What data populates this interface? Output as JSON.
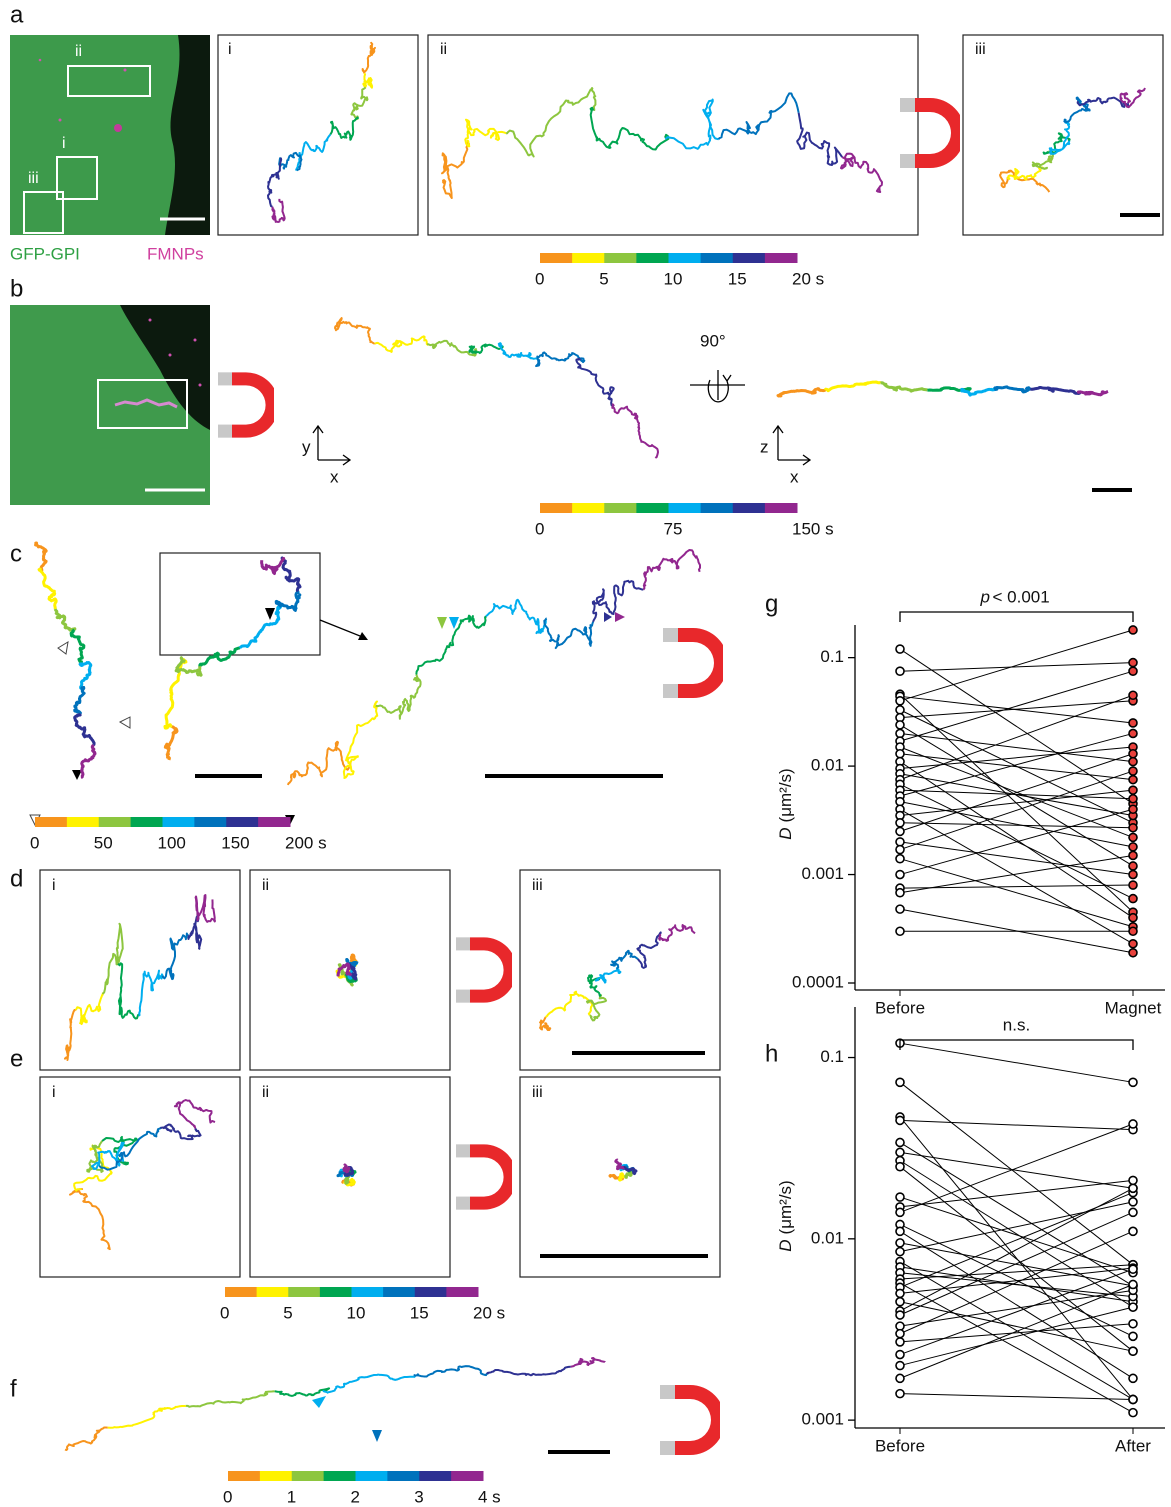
{
  "a": {
    "label": "a",
    "roi_labels": [
      "ii",
      "i",
      "iii"
    ],
    "legend": [
      "GFP-GPI",
      "FMNPs"
    ],
    "subpanels": [
      "i",
      "ii",
      "iii"
    ]
  },
  "b": {
    "label": "b",
    "rotation": "90°",
    "axes_xy": [
      "y",
      "x"
    ],
    "axes_zx": [
      "z",
      "x"
    ]
  },
  "c": {
    "label": "c"
  },
  "d": {
    "label": "d",
    "subpanels": [
      "i",
      "ii",
      "iii"
    ]
  },
  "e": {
    "label": "e",
    "subpanels": [
      "i",
      "ii",
      "iii"
    ]
  },
  "f": {
    "label": "f"
  },
  "colors": [
    "#f7941d",
    "#fff200",
    "#8dc63f",
    "#00a651",
    "#00aeef",
    "#0072bc",
    "#2e3192",
    "#92278f"
  ],
  "colorbars": [
    {
      "lim": [
        0,
        20
      ],
      "ticks": [
        0,
        5,
        10,
        15,
        {
          "value": 20,
          "label": "20 s"
        }
      ]
    },
    {
      "lim": [
        0,
        150
      ],
      "ticks": [
        0,
        75,
        {
          "value": 150,
          "label": "150 s"
        }
      ]
    },
    {
      "lim": [
        0,
        200
      ],
      "ticks": [
        0,
        50,
        100,
        150,
        {
          "value": 200,
          "label": "200 s"
        }
      ]
    },
    {
      "lim": [
        0,
        20
      ],
      "ticks": [
        0,
        5,
        10,
        15,
        {
          "value": 20,
          "label": "20 s"
        }
      ]
    },
    {
      "lim": [
        0,
        4
      ],
      "ticks": [
        0,
        1,
        2,
        3,
        {
          "value": 4,
          "label": "4 s"
        }
      ]
    }
  ],
  "chart_data": [
    {
      "type": "paired-scatter",
      "panel_label": "g",
      "significance_var": "p",
      "significance": "< 0.001",
      "y_label_var": "D",
      "y_label": "(μm²/s)",
      "categories": [
        "Before",
        "Magnet"
      ],
      "ylog": true,
      "ylim": [
        0.0001,
        0.2
      ],
      "yticks": [
        0.0001,
        0.001,
        0.01,
        0.1
      ],
      "line_color": "#000000",
      "series": [
        {
          "color": "#ffffff",
          "values": [
            0.12,
            0.075,
            0.046,
            0.044,
            0.04,
            0.033,
            0.028,
            0.024,
            0.02,
            0.017,
            0.015,
            0.013,
            0.011,
            0.0095,
            0.0085,
            0.0075,
            0.0068,
            0.006,
            0.0053,
            0.0047,
            0.004,
            0.0035,
            0.003,
            0.0025,
            0.002,
            0.0017,
            0.0014,
            0.001,
            0.00075,
            0.00068,
            0.00048,
            0.0003
          ]
        },
        {
          "color": "#e8413c",
          "values": [
            0.0045,
            0.09,
            0.00045,
            0.025,
            0.18,
            0.003,
            0.04,
            0.0012,
            0.011,
            0.075,
            0.0022,
            0.0075,
            0.0004,
            0.015,
            0.0035,
            0.045,
            0.0006,
            0.005,
            0.02,
            0.0018,
            0.00023,
            0.006,
            0.0027,
            0.013,
            0.001,
            0.009,
            0.00033,
            0.004,
            0.0008,
            0.0015,
            0.00019,
            0.0003
          ]
        }
      ]
    },
    {
      "type": "paired-scatter",
      "panel_label": "h",
      "significance": "n.s.",
      "y_label_var": "D",
      "y_label": "(μm²/s)",
      "categories": [
        "Before",
        "After"
      ],
      "ylog": true,
      "ylim": [
        0.00094,
        0.19
      ],
      "yticks": [
        0.001,
        0.01,
        0.1
      ],
      "line_color": "#000000",
      "series": [
        {
          "color": "#ffffff",
          "values": [
            0.12,
            0.073,
            0.047,
            0.045,
            0.034,
            0.03,
            0.027,
            0.025,
            0.017,
            0.015,
            0.014,
            0.012,
            0.011,
            0.0095,
            0.0085,
            0.0075,
            0.007,
            0.0065,
            0.006,
            0.0057,
            0.0054,
            0.005,
            0.0045,
            0.004,
            0.0038,
            0.0033,
            0.003,
            0.0027,
            0.0023,
            0.002,
            0.0017,
            0.0014
          ]
        },
        {
          "color": "#ffffff",
          "values": [
            0.073,
            0.0072,
            0.0013,
            0.04,
            0.0055,
            0.019,
            0.0042,
            0.0024,
            0.0065,
            0.021,
            0.043,
            0.0029,
            0.0017,
            0.0055,
            0.016,
            0.0013,
            0.0045,
            0.0048,
            0.0072,
            0.0011,
            0.018,
            0.0069,
            0.0024,
            0.019,
            0.014,
            0.0052,
            0.011,
            0.0034,
            0.0068,
            0.0042,
            0.0056,
            0.0013
          ]
        }
      ]
    }
  ]
}
